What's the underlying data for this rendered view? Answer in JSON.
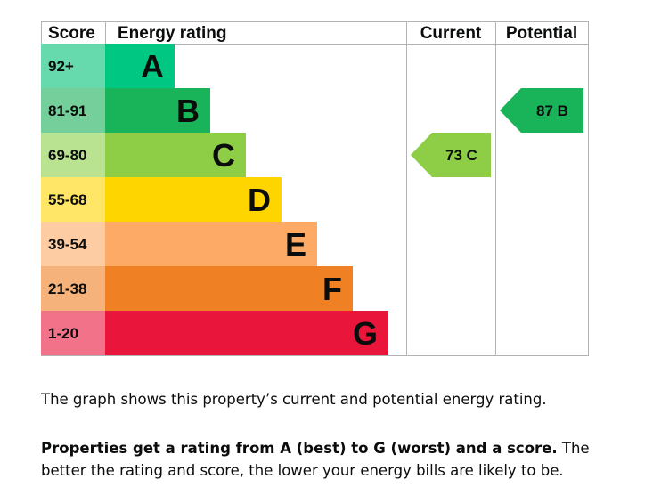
{
  "chart_data": {
    "type": "bar",
    "columns": {
      "score": "Score",
      "rating": "Energy rating",
      "current": "Current",
      "potential": "Potential"
    },
    "bands": [
      {
        "score_range": "92+",
        "letter": "A",
        "color": "#00c781",
        "score_bg": "#66d9ad"
      },
      {
        "score_range": "81-91",
        "letter": "B",
        "color": "#19b459",
        "score_bg": "#74cf9a"
      },
      {
        "score_range": "69-80",
        "letter": "C",
        "color": "#8dce46",
        "score_bg": "#bae391"
      },
      {
        "score_range": "55-68",
        "letter": "D",
        "color": "#ffd500",
        "score_bg": "#ffe666"
      },
      {
        "score_range": "39-54",
        "letter": "E",
        "color": "#fcaa65",
        "score_bg": "#fdcca3"
      },
      {
        "score_range": "21-38",
        "letter": "F",
        "color": "#ef8023",
        "score_bg": "#f5b37b"
      },
      {
        "score_range": "1-20",
        "letter": "G",
        "color": "#e9153b",
        "score_bg": "#f27389"
      }
    ],
    "current": {
      "score": 73,
      "band": "C",
      "label": "73 C",
      "color": "#8dce46"
    },
    "potential": {
      "score": 87,
      "band": "B",
      "label": "87 B",
      "color": "#19b459"
    }
  },
  "caption": {
    "line1": "The graph shows this property’s current and potential energy rating.",
    "bold": "Properties get a rating from A (best) to G (worst) and a score.",
    "rest": " The better the rating and score, the lower your energy bills are likely to be."
  }
}
